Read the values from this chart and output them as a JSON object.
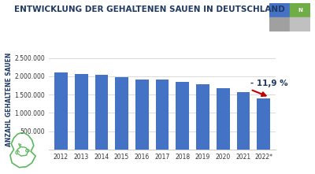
{
  "years": [
    "2012",
    "2013",
    "2014",
    "2015",
    "2016",
    "2017",
    "2018",
    "2019",
    "2020",
    "2021",
    "2022*"
  ],
  "values": [
    2110000,
    2055000,
    2045000,
    1975000,
    1920000,
    1915000,
    1845000,
    1790000,
    1680000,
    1575000,
    1388000
  ],
  "bar_color": "#4472C4",
  "title": "ENTWICKLUNG DER GEHALTENEN SAUEN IN DEUTSCHLAND",
  "title_color": "#1F3864",
  "title_bar_color": "#1F3864",
  "ylabel": "ANZAHL GEHALTENE SAUEN",
  "ylim": [
    0,
    2750000
  ],
  "yticks": [
    500000,
    1000000,
    1500000,
    2000000,
    2500000
  ],
  "ytick_labels": [
    "500.000",
    "1.000.000",
    "1.500.000",
    "2.000.000",
    "2.500.000"
  ],
  "annotation_text": "- 11,9 %",
  "annotation_color": "#1F3864",
  "arrow_color": "#C00000",
  "bg_color": "#FFFFFF",
  "grid_color": "#CCCCCC",
  "axis_label_fontsize": 5.5,
  "title_fontsize": 7.5,
  "tick_fontsize": 5.5
}
